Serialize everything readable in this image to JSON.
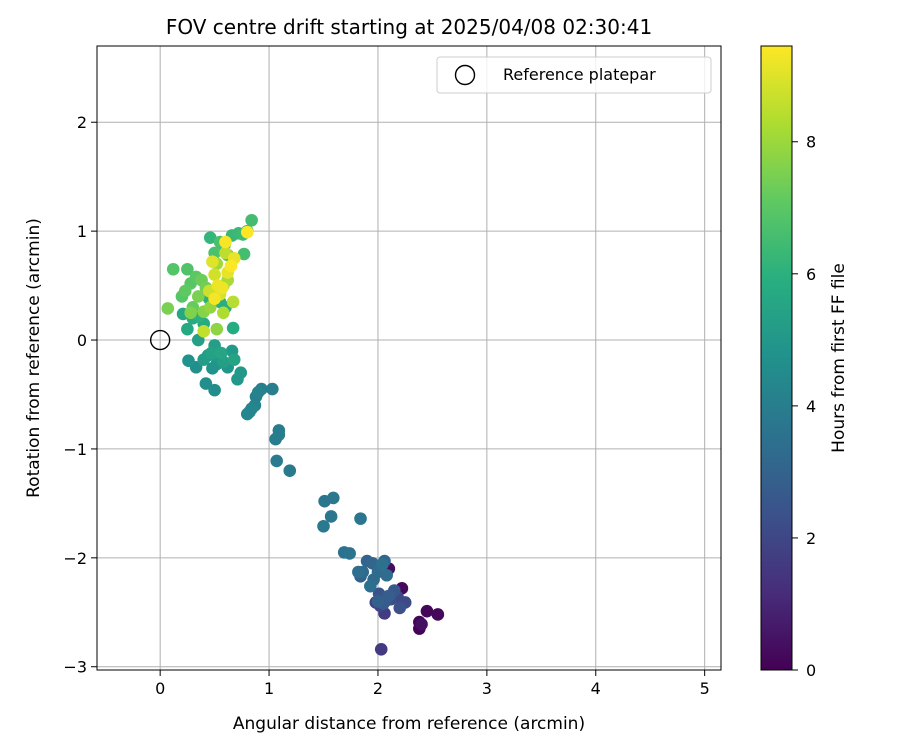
{
  "chart_data": {
    "type": "scatter",
    "title": "FOV centre drift starting at 2025/04/08 02:30:41",
    "xlabel": "Angular distance from reference (arcmin)",
    "ylabel": "Rotation from reference (arcmin)",
    "xlim": [
      -0.58,
      5.15
    ],
    "ylim": [
      -3.03,
      2.7
    ],
    "xticks": [
      0,
      1,
      2,
      3,
      4,
      5
    ],
    "yticks": [
      -3,
      -2,
      -1,
      0,
      1,
      2
    ],
    "xtick_labels": [
      "0",
      "1",
      "2",
      "3",
      "4",
      "5"
    ],
    "ytick_labels": [
      "−3",
      "−2",
      "−1",
      "0",
      "1",
      "2"
    ],
    "grid": true,
    "legend": {
      "position": "top-right",
      "entries": [
        {
          "label": "Reference platepar",
          "marker": "open-circle",
          "color": "#000000"
        }
      ]
    },
    "reference_point": {
      "x": 0,
      "y": 0,
      "label": "Reference platepar"
    },
    "colorbar": {
      "label": "Hours from first FF file",
      "range": [
        0,
        9.45
      ],
      "ticks": [
        0,
        2,
        4,
        6,
        8
      ],
      "tick_labels": [
        "0",
        "2",
        "4",
        "6",
        "8"
      ],
      "colormap": "viridis"
    },
    "points": [
      [
        2.38,
        -2.65,
        0.05
      ],
      [
        2.38,
        -2.59,
        0.1
      ],
      [
        2.45,
        -2.49,
        0.15
      ],
      [
        2.55,
        -2.52,
        0.2
      ],
      [
        2.22,
        -2.28,
        0.25
      ],
      [
        2.14,
        -2.35,
        0.3
      ],
      [
        2.1,
        -2.1,
        0.35
      ],
      [
        2.4,
        -2.61,
        0.4
      ],
      [
        2.03,
        -2.84,
        1.6
      ],
      [
        2.06,
        -2.51,
        1.7
      ],
      [
        1.98,
        -2.41,
        1.8
      ],
      [
        2.02,
        -2.44,
        1.9
      ],
      [
        2.18,
        -2.36,
        2.0
      ],
      [
        2.25,
        -2.41,
        2.1
      ],
      [
        2.12,
        -2.38,
        2.2
      ],
      [
        2.2,
        -2.46,
        2.3
      ],
      [
        2.01,
        -2.33,
        2.4
      ],
      [
        2.08,
        -2.39,
        2.5
      ],
      [
        2.15,
        -2.3,
        2.6
      ],
      [
        2.05,
        -2.42,
        2.7
      ],
      [
        2.1,
        -2.35,
        2.8
      ],
      [
        2.0,
        -2.4,
        2.9
      ],
      [
        1.84,
        -2.17,
        3.0
      ],
      [
        1.9,
        -2.03,
        3.05
      ],
      [
        1.95,
        -2.05,
        3.1
      ],
      [
        2.06,
        -2.03,
        3.15
      ],
      [
        1.86,
        -2.13,
        3.2
      ],
      [
        1.96,
        -2.2,
        3.25
      ],
      [
        2.0,
        -2.13,
        3.3
      ],
      [
        2.08,
        -2.16,
        3.35
      ],
      [
        1.82,
        -2.13,
        3.4
      ],
      [
        1.93,
        -2.26,
        3.45
      ],
      [
        2.04,
        -2.06,
        3.5
      ],
      [
        1.69,
        -1.95,
        3.55
      ],
      [
        1.74,
        -1.96,
        3.6
      ],
      [
        1.84,
        -1.64,
        3.65
      ],
      [
        1.51,
        -1.48,
        3.7
      ],
      [
        1.59,
        -1.45,
        3.72
      ],
      [
        1.57,
        -1.62,
        3.75
      ],
      [
        1.5,
        -1.71,
        3.8
      ],
      [
        1.19,
        -1.2,
        3.85
      ],
      [
        1.07,
        -1.11,
        3.9
      ],
      [
        1.09,
        -0.83,
        3.92
      ],
      [
        1.06,
        -0.91,
        3.95
      ],
      [
        1.09,
        -0.87,
        3.97
      ],
      [
        1.03,
        -0.45,
        4.0
      ],
      [
        0.93,
        -0.45,
        4.05
      ],
      [
        0.88,
        -0.52,
        4.1
      ],
      [
        0.9,
        -0.48,
        4.15
      ],
      [
        0.87,
        -0.6,
        4.2
      ],
      [
        0.82,
        -0.66,
        4.25
      ],
      [
        0.84,
        -0.63,
        4.3
      ],
      [
        0.8,
        -0.68,
        4.35
      ],
      [
        0.5,
        -0.46,
        4.6
      ],
      [
        0.42,
        -0.4,
        4.65
      ],
      [
        0.33,
        -0.25,
        4.7
      ],
      [
        0.26,
        -0.19,
        4.75
      ],
      [
        0.48,
        -0.26,
        4.8
      ],
      [
        0.52,
        -0.22,
        4.85
      ],
      [
        0.62,
        -0.25,
        4.9
      ],
      [
        0.71,
        -0.36,
        4.95
      ],
      [
        0.74,
        -0.3,
        5.0
      ],
      [
        0.66,
        -0.1,
        5.05
      ],
      [
        0.54,
        -0.15,
        5.1
      ],
      [
        0.44,
        -0.14,
        5.15
      ],
      [
        0.4,
        -0.18,
        5.2
      ],
      [
        0.5,
        -0.05,
        5.25
      ],
      [
        0.58,
        -0.2,
        5.3
      ],
      [
        0.35,
        0.0,
        5.35
      ],
      [
        0.47,
        -0.12,
        5.4
      ],
      [
        0.68,
        -0.18,
        5.45
      ],
      [
        0.56,
        -0.12,
        5.5
      ],
      [
        0.21,
        0.24,
        5.6
      ],
      [
        0.25,
        0.1,
        5.65
      ],
      [
        0.3,
        0.2,
        5.7
      ],
      [
        0.4,
        0.15,
        5.75
      ],
      [
        0.67,
        0.11,
        5.8
      ],
      [
        0.6,
        0.3,
        5.85
      ],
      [
        0.55,
        0.35,
        5.9
      ],
      [
        0.45,
        0.38,
        5.95
      ],
      [
        0.36,
        0.22,
        6.0
      ],
      [
        0.46,
        0.94,
        6.2
      ],
      [
        0.59,
        0.87,
        6.25
      ],
      [
        0.66,
        0.96,
        6.3
      ],
      [
        0.72,
        0.98,
        6.35
      ],
      [
        0.76,
        0.97,
        6.4
      ],
      [
        0.8,
        1.0,
        6.45
      ],
      [
        0.84,
        1.1,
        6.5
      ],
      [
        0.77,
        0.79,
        6.55
      ],
      [
        0.62,
        0.78,
        6.6
      ],
      [
        0.55,
        0.9,
        6.65
      ],
      [
        0.5,
        0.8,
        6.7
      ],
      [
        0.25,
        0.65,
        6.8
      ],
      [
        0.12,
        0.65,
        6.85
      ],
      [
        0.2,
        0.4,
        6.9
      ],
      [
        0.28,
        0.52,
        6.95
      ],
      [
        0.33,
        0.58,
        7.0
      ],
      [
        0.23,
        0.45,
        7.1
      ],
      [
        0.3,
        0.3,
        7.2
      ],
      [
        0.38,
        0.55,
        7.3
      ],
      [
        0.42,
        0.48,
        7.4
      ],
      [
        0.35,
        0.4,
        7.5
      ],
      [
        0.07,
        0.29,
        7.5
      ],
      [
        0.28,
        0.25,
        7.6
      ],
      [
        0.4,
        0.26,
        7.7
      ],
      [
        0.52,
        0.1,
        7.8
      ],
      [
        0.46,
        0.3,
        7.9
      ],
      [
        0.58,
        0.5,
        8.0
      ],
      [
        0.52,
        0.7,
        8.1
      ],
      [
        0.62,
        0.55,
        8.2
      ],
      [
        0.58,
        0.25,
        8.3
      ],
      [
        0.67,
        0.35,
        8.4
      ],
      [
        0.6,
        0.8,
        8.5
      ],
      [
        0.4,
        0.08,
        8.6
      ],
      [
        0.45,
        0.45,
        8.7
      ],
      [
        0.5,
        0.6,
        8.8
      ],
      [
        0.55,
        0.42,
        8.9
      ],
      [
        0.48,
        0.72,
        9.0
      ],
      [
        0.62,
        0.62,
        9.1
      ],
      [
        0.68,
        0.75,
        9.15
      ],
      [
        0.53,
        0.5,
        9.2
      ],
      [
        0.57,
        0.48,
        9.25
      ],
      [
        0.5,
        0.38,
        9.3
      ],
      [
        0.6,
        0.9,
        9.35
      ],
      [
        0.65,
        0.68,
        9.4
      ],
      [
        0.8,
        0.99,
        9.45
      ]
    ]
  }
}
